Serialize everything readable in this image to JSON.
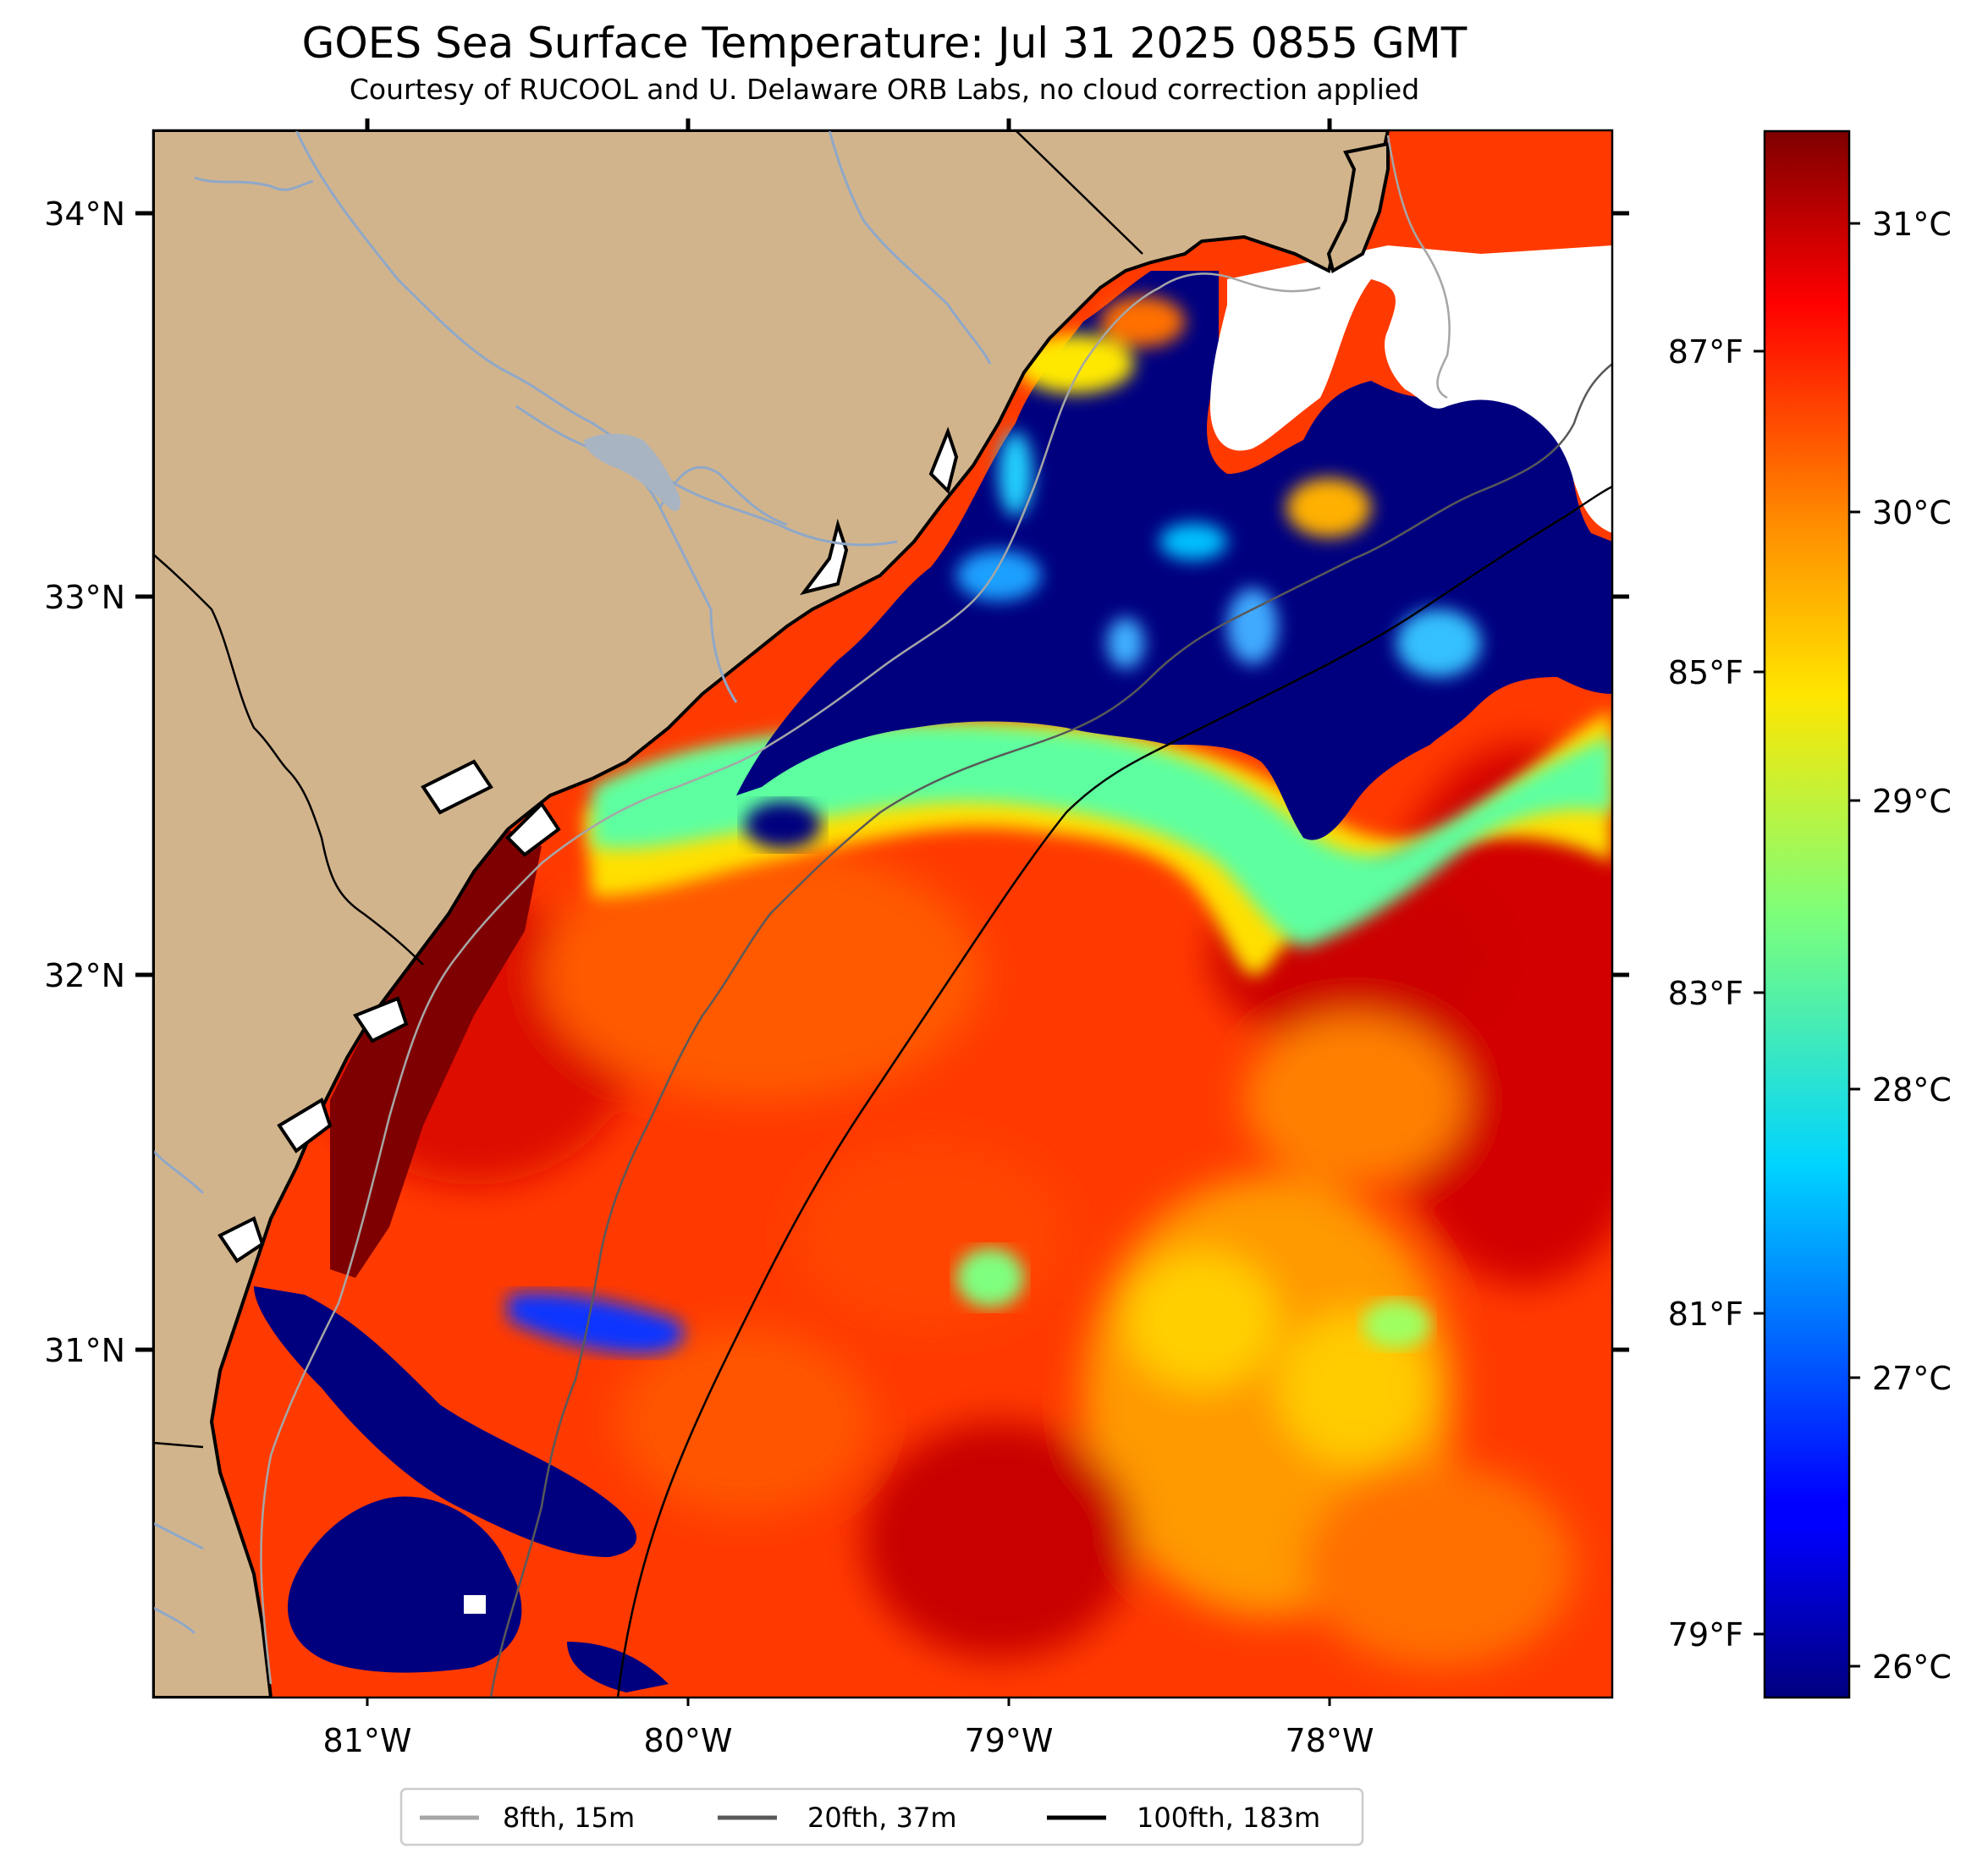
{
  "title": "GOES Sea Surface Temperature: Jul 31 2025 0855 GMT",
  "subtitle": "Courtesy of RUCOOL and U. Delaware ORB Labs, no cloud correction applied",
  "map": {
    "lon_labels": [
      "81°W",
      "80°W",
      "79°W",
      "78°W"
    ],
    "lat_labels": [
      "34°N",
      "33°N",
      "32°N",
      "31°N"
    ],
    "land_color": "#d2b48c",
    "ocean_nodata_color": "#ffffff"
  },
  "colorbar": {
    "celsius_labels": [
      "31°C",
      "30°C",
      "29°C",
      "28°C",
      "27°C",
      "26°C"
    ],
    "fahrenheit_labels": [
      "87°F",
      "85°F",
      "83°F",
      "81°F",
      "79°F"
    ],
    "colormap": "jet"
  },
  "legend": {
    "items": [
      {
        "label": "8fth, 15m",
        "color": "#a6a6a6"
      },
      {
        "label": "20fth, 37m",
        "color": "#595959"
      },
      {
        "label": "100fth, 183m",
        "color": "#000000"
      }
    ]
  }
}
